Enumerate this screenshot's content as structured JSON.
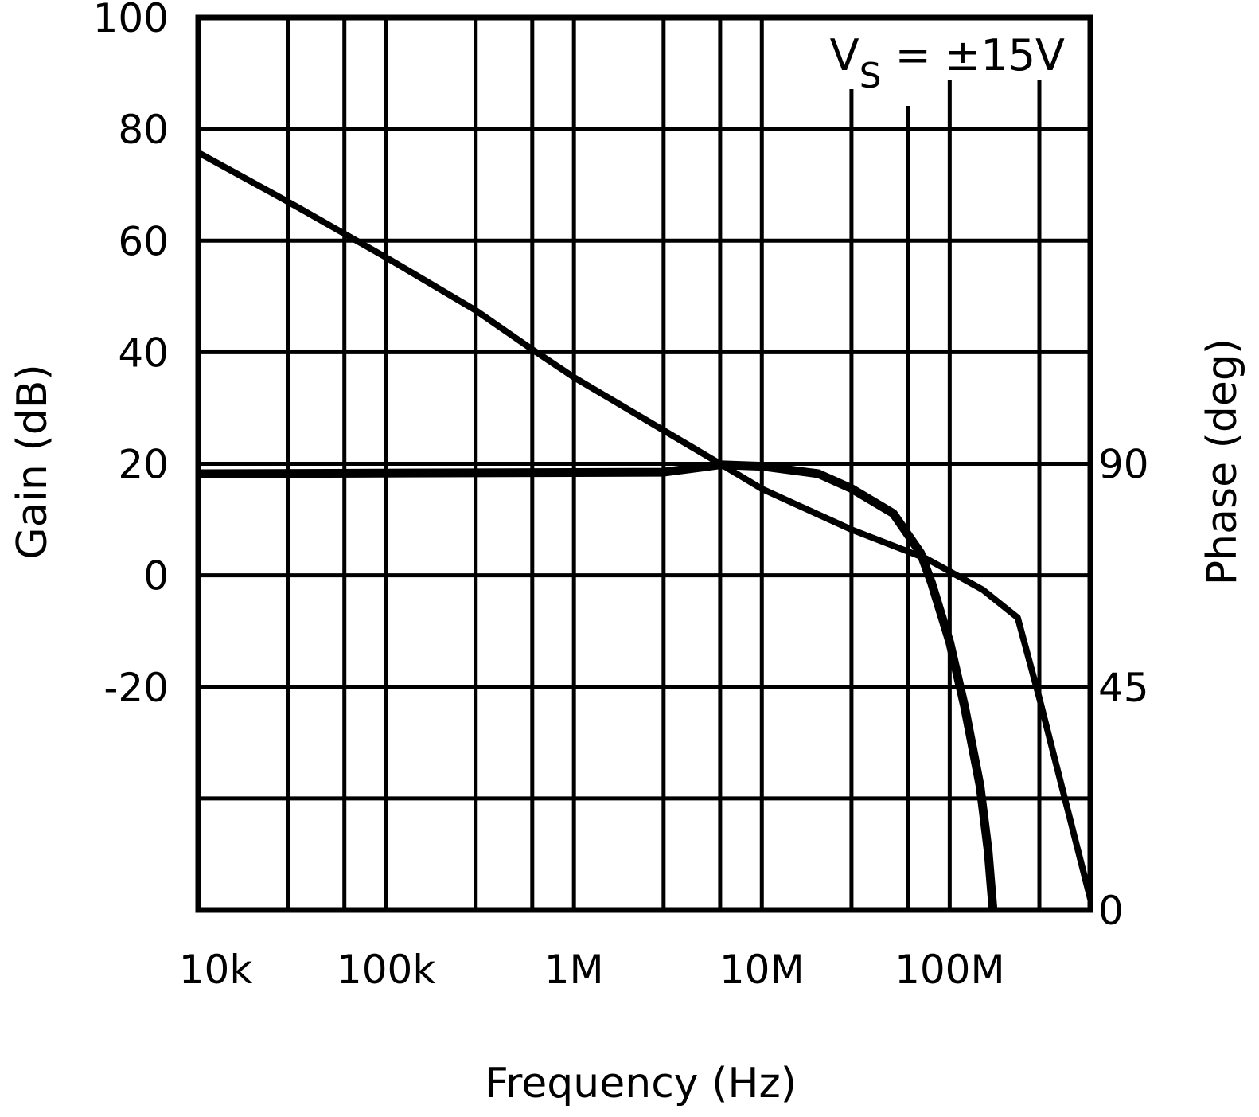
{
  "chart_data": {
    "type": "line",
    "xlabel": "Frequency (Hz)",
    "ylabel": "Gain (dB)",
    "y2label": "Phase (deg)",
    "xscale": "log",
    "xlim": [
      10000,
      560000000
    ],
    "ylim": [
      -60,
      100
    ],
    "y2lim": [
      0,
      180
    ],
    "grid": true,
    "x_tick_labels": [
      {
        "value": 10000,
        "label": "10k"
      },
      {
        "value": 100000,
        "label": "100k"
      },
      {
        "value": 1000000,
        "label": "1M"
      },
      {
        "value": 10000000,
        "label": "10M"
      },
      {
        "value": 100000000,
        "label": "100M"
      }
    ],
    "x_gridlines": [
      30000,
      60000,
      100000,
      300000,
      600000,
      1000000,
      3000000,
      6000000,
      10000000,
      30000000,
      60000000,
      100000000,
      300000000
    ],
    "y_tick_labels": [
      {
        "value": 100,
        "label": "100"
      },
      {
        "value": 80,
        "label": "80"
      },
      {
        "value": 60,
        "label": "60"
      },
      {
        "value": 40,
        "label": "40"
      },
      {
        "value": 20,
        "label": "20"
      },
      {
        "value": 0,
        "label": "0"
      },
      {
        "value": -20,
        "label": "-20"
      }
    ],
    "y_gridlines": [
      80,
      60,
      40,
      20,
      0,
      -20,
      -40
    ],
    "y2_tick_labels": [
      {
        "value": 90,
        "label": "90"
      },
      {
        "value": 45,
        "label": "45"
      },
      {
        "value": 0,
        "label": "0"
      }
    ],
    "annotation": {
      "main": "V",
      "subscript": "S",
      "rest": " = ±15V"
    },
    "series": [
      {
        "axis": "gain",
        "x": [
          10000,
          30000,
          100000,
          300000,
          600000,
          1000000,
          3000000,
          6000000,
          10000000,
          30000000,
          75000000,
          100000000,
          150000000,
          230000000,
          300000000,
          560000000
        ],
        "y": [
          75.8,
          67,
          57,
          47.5,
          40.5,
          35.5,
          26,
          20,
          15.5,
          8.2,
          3,
          0.7,
          -2.6,
          -7.6,
          -22,
          -58
        ]
      },
      {
        "axis": "phase",
        "x": [
          10000,
          3000000,
          6000000,
          10000000,
          20000000,
          30000000,
          50000000,
          70000000,
          80000000,
          100000000,
          120000000,
          145000000,
          160000000,
          170000000
        ],
        "y": [
          88,
          88.3,
          89.8,
          89.5,
          88,
          85,
          80,
          72,
          66,
          54,
          41,
          25,
          12,
          0
        ]
      }
    ]
  }
}
